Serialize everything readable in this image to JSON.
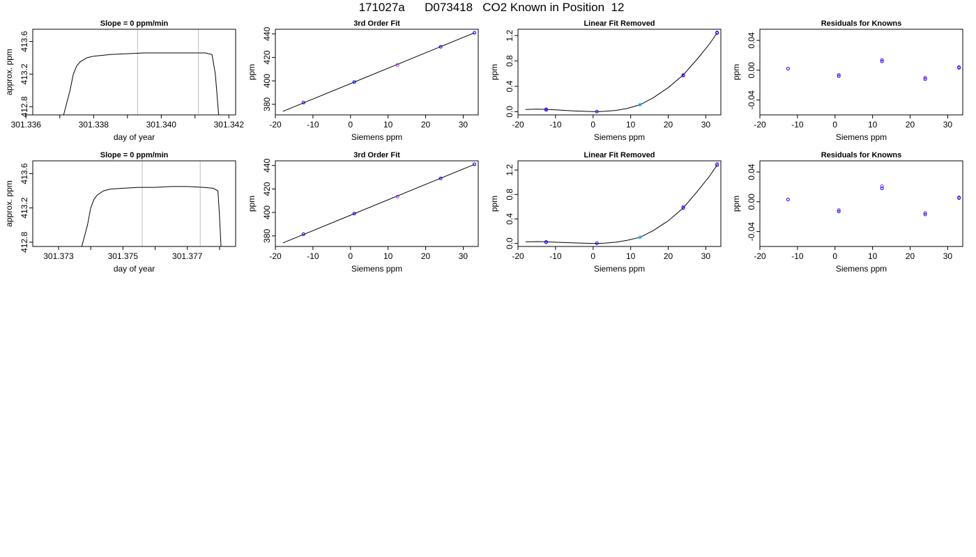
{
  "header": {
    "title": "171027a      D073418   CO2 Known in Position  12"
  },
  "colors": {
    "line": "#000000",
    "gray": "#bfbfbf",
    "blue": "#0000ff",
    "purple": "#a020f0",
    "sky": "#00bfff"
  },
  "chart_data": [
    {
      "id": "r1-timeseries",
      "type": "line",
      "title": "Slope =  0  ppm/min",
      "xlabel": "day of year",
      "ylabel": "approx. ppm",
      "xlim": [
        301.3362,
        301.3422
      ],
      "ylim": [
        412.7,
        413.75
      ],
      "xticks": [
        301.336,
        301.338,
        301.34,
        301.342
      ],
      "xtick_labels": [
        "301.336",
        "301.338",
        "301.340",
        "301.342"
      ],
      "xminor": [
        301.337,
        301.339,
        301.341
      ],
      "yticks": [
        412.8,
        413.2,
        413.6
      ],
      "ytick_labels": [
        "412.8",
        "413.2",
        "413.6"
      ],
      "vlines": [
        301.3393,
        301.3411
      ],
      "series": [
        {
          "values_x": [
            301.3371,
            301.3373,
            301.3374,
            301.3375,
            301.3376,
            301.3378,
            301.338,
            301.3385,
            301.339,
            301.3395,
            301.34,
            301.3405,
            301.341,
            301.3413,
            301.3415,
            301.3416,
            301.3417
          ],
          "values_y": [
            412.68,
            413.0,
            413.2,
            413.3,
            413.35,
            413.4,
            413.42,
            413.44,
            413.45,
            413.46,
            413.46,
            413.46,
            413.46,
            413.46,
            413.44,
            413.2,
            412.68
          ]
        }
      ]
    },
    {
      "id": "r1-fit",
      "type": "scatter",
      "title": "3rd Order Fit",
      "xlabel": "Siemens ppm",
      "ylabel": "ppm",
      "xlim": [
        -20,
        34
      ],
      "ylim": [
        371,
        444
      ],
      "xticks": [
        -20,
        -10,
        0,
        10,
        20,
        30
      ],
      "xtick_labels": [
        "-20",
        "-10",
        "0",
        "10",
        "20",
        "30"
      ],
      "yticks": [
        380,
        400,
        420,
        440
      ],
      "ytick_labels": [
        "380",
        "400",
        "420",
        "440"
      ],
      "line": {
        "x": [
          -18,
          33
        ],
        "y": [
          374,
          441
        ]
      },
      "points_blue": {
        "x": [
          -12.5,
          1,
          24,
          33
        ],
        "y": [
          381.5,
          399,
          429,
          441
        ]
      },
      "points_purple": {
        "x": [
          12.5
        ],
        "y": [
          413.5
        ]
      }
    },
    {
      "id": "r1-linfit",
      "type": "scatter",
      "title": "Linear Fit Removed",
      "xlabel": "Siemens ppm",
      "ylabel": "ppm",
      "xlim": [
        -20,
        34
      ],
      "ylim": [
        -0.05,
        1.3
      ],
      "xticks": [
        -20,
        -10,
        0,
        10,
        20,
        30
      ],
      "xtick_labels": [
        "-20",
        "-10",
        "0",
        "10",
        "20",
        "30"
      ],
      "yticks": [
        0.0,
        0.4,
        0.8,
        1.2
      ],
      "ytick_labels": [
        "0.0",
        "0.4",
        "0.8",
        "1.2"
      ],
      "curve": {
        "x": [
          -18,
          -15,
          -12.5,
          -10,
          -5,
          0,
          1,
          3,
          6,
          9,
          12.5,
          16,
          20,
          24,
          28,
          31,
          33
        ],
        "y": [
          0.035,
          0.04,
          0.037,
          0.03,
          0.012,
          0.002,
          0.0,
          0.006,
          0.02,
          0.05,
          0.11,
          0.22,
          0.38,
          0.58,
          0.85,
          1.07,
          1.24
        ]
      },
      "points_blue": {
        "x": [
          -12.5,
          1,
          24,
          33
        ],
        "y": [
          0.03,
          0.002,
          0.57,
          1.24
        ]
      },
      "points_purple": {
        "x": [
          -12.5,
          24,
          33
        ],
        "y": [
          0.04,
          0.58,
          1.25
        ]
      },
      "points_sky": {
        "x": [
          12.5
        ],
        "y": [
          0.11
        ]
      }
    },
    {
      "id": "r1-resid",
      "type": "scatter",
      "title": "Residuals for Knowns",
      "xlabel": "Siemens ppm",
      "ylabel": "ppm",
      "xlim": [
        -20,
        34
      ],
      "ylim": [
        -0.06,
        0.055
      ],
      "xticks": [
        -20,
        -10,
        0,
        10,
        20,
        30
      ],
      "xtick_labels": [
        "-20",
        "-10",
        "0",
        "10",
        "20",
        "30"
      ],
      "yticks": [
        -0.04,
        0.0,
        0.04
      ],
      "ytick_labels": [
        "-0.04",
        "0.00",
        "0.04"
      ],
      "points_blue": {
        "x": [
          -12.5,
          1,
          12.5,
          24,
          33
        ],
        "y": [
          0.002,
          -0.008,
          0.012,
          -0.012,
          0.004
        ]
      },
      "points_purple": {
        "x": [
          1,
          12.5,
          24,
          33
        ],
        "y": [
          -0.006,
          0.014,
          -0.01,
          0.003
        ]
      }
    },
    {
      "id": "r2-timeseries",
      "type": "line",
      "title": "Slope =  0  ppm/min",
      "xlabel": "day of year",
      "ylabel": "approx. ppm",
      "xlim": [
        301.3722,
        301.3785
      ],
      "ylim": [
        412.75,
        413.75
      ],
      "xticks": [
        301.373,
        301.375,
        301.377
      ],
      "xtick_labels": [
        "301.373",
        "301.375",
        "301.377"
      ],
      "xminor": [
        301.374,
        301.376,
        301.378
      ],
      "yticks": [
        412.8,
        413.2,
        413.6
      ],
      "ytick_labels": [
        "412.8",
        "413.2",
        "413.6"
      ],
      "vlines": [
        301.3756,
        301.3774
      ],
      "series": [
        {
          "values_x": [
            301.3737,
            301.3739,
            301.374,
            301.3741,
            301.3742,
            301.3744,
            301.3746,
            301.375,
            301.3755,
            301.376,
            301.3765,
            301.377,
            301.3775,
            301.3778,
            301.37795,
            301.378,
            301.37805
          ],
          "values_y": [
            412.72,
            413.0,
            413.2,
            413.3,
            413.35,
            413.4,
            413.42,
            413.43,
            413.44,
            413.44,
            413.45,
            413.45,
            413.44,
            413.43,
            413.4,
            413.1,
            412.72
          ]
        }
      ]
    },
    {
      "id": "r2-fit",
      "type": "scatter",
      "title": "3rd Order Fit",
      "xlabel": "Siemens ppm",
      "ylabel": "ppm",
      "xlim": [
        -20,
        34
      ],
      "ylim": [
        371,
        444
      ],
      "xticks": [
        -20,
        -10,
        0,
        10,
        20,
        30
      ],
      "xtick_labels": [
        "-20",
        "-10",
        "0",
        "10",
        "20",
        "30"
      ],
      "yticks": [
        380,
        400,
        420,
        440
      ],
      "ytick_labels": [
        "380",
        "400",
        "420",
        "440"
      ],
      "line": {
        "x": [
          -18,
          33
        ],
        "y": [
          374,
          441
        ]
      },
      "points_blue": {
        "x": [
          -12.5,
          1,
          24,
          33
        ],
        "y": [
          381.5,
          399,
          429,
          441
        ]
      },
      "points_purple": {
        "x": [
          12.5
        ],
        "y": [
          413.5
        ]
      }
    },
    {
      "id": "r2-linfit",
      "type": "scatter",
      "title": "Linear Fit Removed",
      "xlabel": "Siemens ppm",
      "ylabel": "ppm",
      "xlim": [
        -20,
        34
      ],
      "ylim": [
        -0.05,
        1.35
      ],
      "xticks": [
        -20,
        -10,
        0,
        10,
        20,
        30
      ],
      "xtick_labels": [
        "-20",
        "-10",
        "0",
        "10",
        "20",
        "30"
      ],
      "yticks": [
        0.0,
        0.4,
        0.8,
        1.2
      ],
      "ytick_labels": [
        "0.0",
        "0.4",
        "0.8",
        "1.2"
      ],
      "curve": {
        "x": [
          -18,
          -15,
          -12.5,
          -10,
          -5,
          0,
          1,
          3,
          6,
          9,
          12.5,
          16,
          20,
          24,
          28,
          31,
          33
        ],
        "y": [
          0.025,
          0.03,
          0.027,
          0.02,
          0.008,
          0.0,
          0.0,
          0.005,
          0.02,
          0.05,
          0.1,
          0.21,
          0.37,
          0.58,
          0.87,
          1.1,
          1.28
        ]
      },
      "points_blue": {
        "x": [
          -12.5,
          1,
          24,
          33
        ],
        "y": [
          0.02,
          0.002,
          0.58,
          1.28
        ]
      },
      "points_purple": {
        "x": [
          -12.5,
          24,
          33
        ],
        "y": [
          0.025,
          0.6,
          1.3
        ]
      },
      "points_sky": {
        "x": [
          12.5
        ],
        "y": [
          0.1
        ]
      }
    },
    {
      "id": "r2-resid",
      "type": "scatter",
      "title": "Residuals for Knowns",
      "xlabel": "Siemens ppm",
      "ylabel": "ppm",
      "xlim": [
        -20,
        34
      ],
      "ylim": [
        -0.06,
        0.055
      ],
      "xticks": [
        -20,
        -10,
        0,
        10,
        20,
        30
      ],
      "xtick_labels": [
        "-20",
        "-10",
        "0",
        "10",
        "20",
        "30"
      ],
      "yticks": [
        -0.04,
        0.0,
        0.04
      ],
      "ytick_labels": [
        "-0.04",
        "0.00",
        "0.04"
      ],
      "points_blue": {
        "x": [
          -12.5,
          1,
          12.5,
          24,
          33
        ],
        "y": [
          0.003,
          -0.013,
          0.018,
          -0.017,
          0.005
        ]
      },
      "points_purple": {
        "x": [
          1,
          12.5,
          24,
          33
        ],
        "y": [
          -0.011,
          0.021,
          -0.015,
          0.006
        ]
      }
    }
  ]
}
